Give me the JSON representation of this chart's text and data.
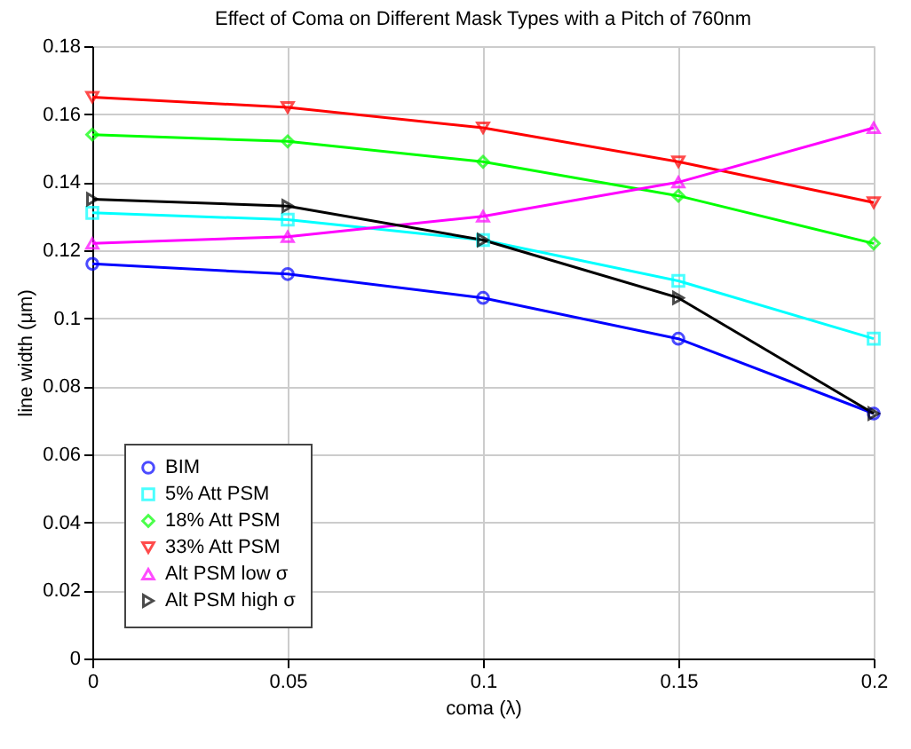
{
  "chart_data": {
    "type": "line",
    "title": "Effect of Coma on Different Mask Types with a Pitch of 760nm",
    "xlabel": "coma (λ)",
    "ylabel": "line width (μm)",
    "x": [
      0,
      0.05,
      0.1,
      0.15,
      0.2
    ],
    "series": [
      {
        "name": "BIM",
        "color": "#0000ff",
        "marker": "circle",
        "values": [
          0.116,
          0.113,
          0.106,
          0.094,
          0.072
        ]
      },
      {
        "name": "5%  Att PSM",
        "color": "#00ffff",
        "marker": "square",
        "values": [
          0.131,
          0.129,
          0.123,
          0.111,
          0.094
        ]
      },
      {
        "name": "18% Att PSM",
        "color": "#00ff00",
        "marker": "diamond",
        "values": [
          0.154,
          0.152,
          0.146,
          0.136,
          0.122
        ]
      },
      {
        "name": "33% Att PSM",
        "color": "#ff0000",
        "marker": "triangle-down",
        "values": [
          0.165,
          0.162,
          0.156,
          0.146,
          0.134
        ]
      },
      {
        "name": "Alt PSM low σ",
        "color": "#ff00ff",
        "marker": "triangle-up",
        "values": [
          0.122,
          0.124,
          0.13,
          0.14,
          0.156
        ]
      },
      {
        "name": "Alt PSM high σ",
        "color": "#000000",
        "marker": "triangle-right",
        "values": [
          0.135,
          0.133,
          0.123,
          0.106,
          0.072
        ]
      }
    ],
    "xlim": [
      0,
      0.2
    ],
    "xticks": [
      0,
      0.05,
      0.1,
      0.15,
      0.2
    ],
    "ylim": [
      0,
      0.18
    ],
    "yticks": [
      0,
      0.02,
      0.04,
      0.06,
      0.08,
      0.1,
      0.12,
      0.14,
      0.16,
      0.18
    ],
    "grid": true,
    "legend": "bottom left",
    "line_style": "solid"
  }
}
